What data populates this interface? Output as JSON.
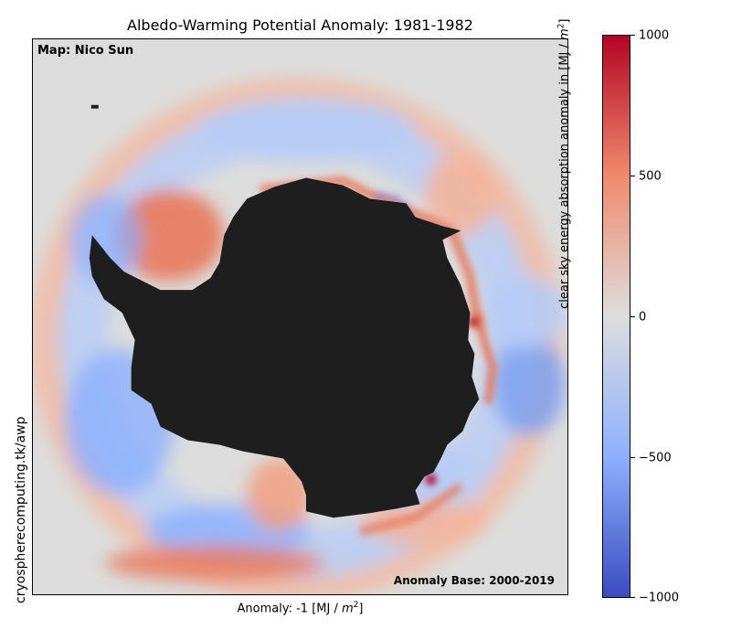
{
  "title": "Albedo-Warming Potential Anomaly: 1981-1982",
  "map_credit": "Map: Nico Sun",
  "anomaly_base": "Anomaly Base: 2000-2019",
  "side_url": "cryospherecomputing.tk/awp",
  "xlabel": {
    "prefix": "Anomaly: -1 [MJ / ",
    "unit_var": "m",
    "exp": "2",
    "suffix": "]"
  },
  "colorbar": {
    "label_prefix": "clear sky energy absorption anomaly in [MJ / ",
    "unit_var": "m",
    "exp": "2",
    "label_suffix": "]",
    "ticks": [
      "1000",
      "500",
      "0",
      "−500",
      "−1000"
    ],
    "colors": [
      "#b40426",
      "#f08a6c",
      "#dddddd",
      "#8db0fe",
      "#3b4cc0"
    ]
  },
  "map_colors": {
    "land": "#1e1e1e",
    "background": "#dcdcdc",
    "warm": "#e8795b",
    "warm_light": "#f4b59b",
    "cool": "#7fa2f0",
    "cool_light": "#b7ccf6",
    "hot": "#b40426"
  }
}
